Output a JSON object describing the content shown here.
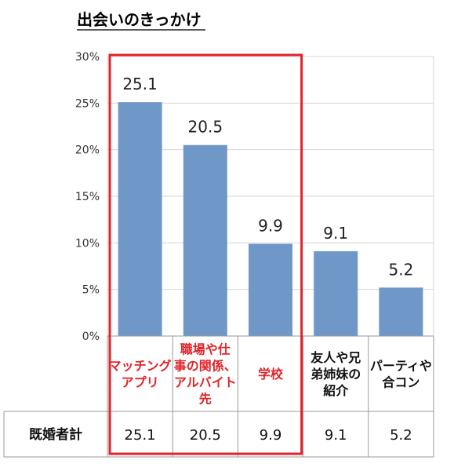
{
  "chart_data": {
    "type": "bar",
    "title": "出会いのきっかけ",
    "categories": [
      [
        "マッチング",
        "アプリ"
      ],
      [
        "職場や仕",
        "事の関係、",
        "アルバイト",
        "先"
      ],
      [
        "学校"
      ],
      [
        "友人や兄",
        "弟姉妹の",
        "紹介"
      ],
      [
        "パーティや",
        "合コン"
      ]
    ],
    "values": [
      25.1,
      20.5,
      9.9,
      9.1,
      5.2
    ],
    "ylim": [
      0,
      30
    ],
    "yticks": [
      "0%",
      "5%",
      "10%",
      "15%",
      "20%",
      "25%",
      "30%"
    ],
    "grid": true,
    "highlighted_categories": [
      0,
      1,
      2
    ],
    "table": {
      "row_label": "既婚者計",
      "values": [
        "25.1",
        "20.5",
        "9.9",
        "9.1",
        "5.2"
      ]
    }
  },
  "colors": {
    "bar": "#6f97c8",
    "highlight_box": "#e0242a",
    "highlight_text": "#e0242a",
    "normal_text": "#111111",
    "grid": "#d6d6d6",
    "table_border": "#9a9a9a"
  }
}
